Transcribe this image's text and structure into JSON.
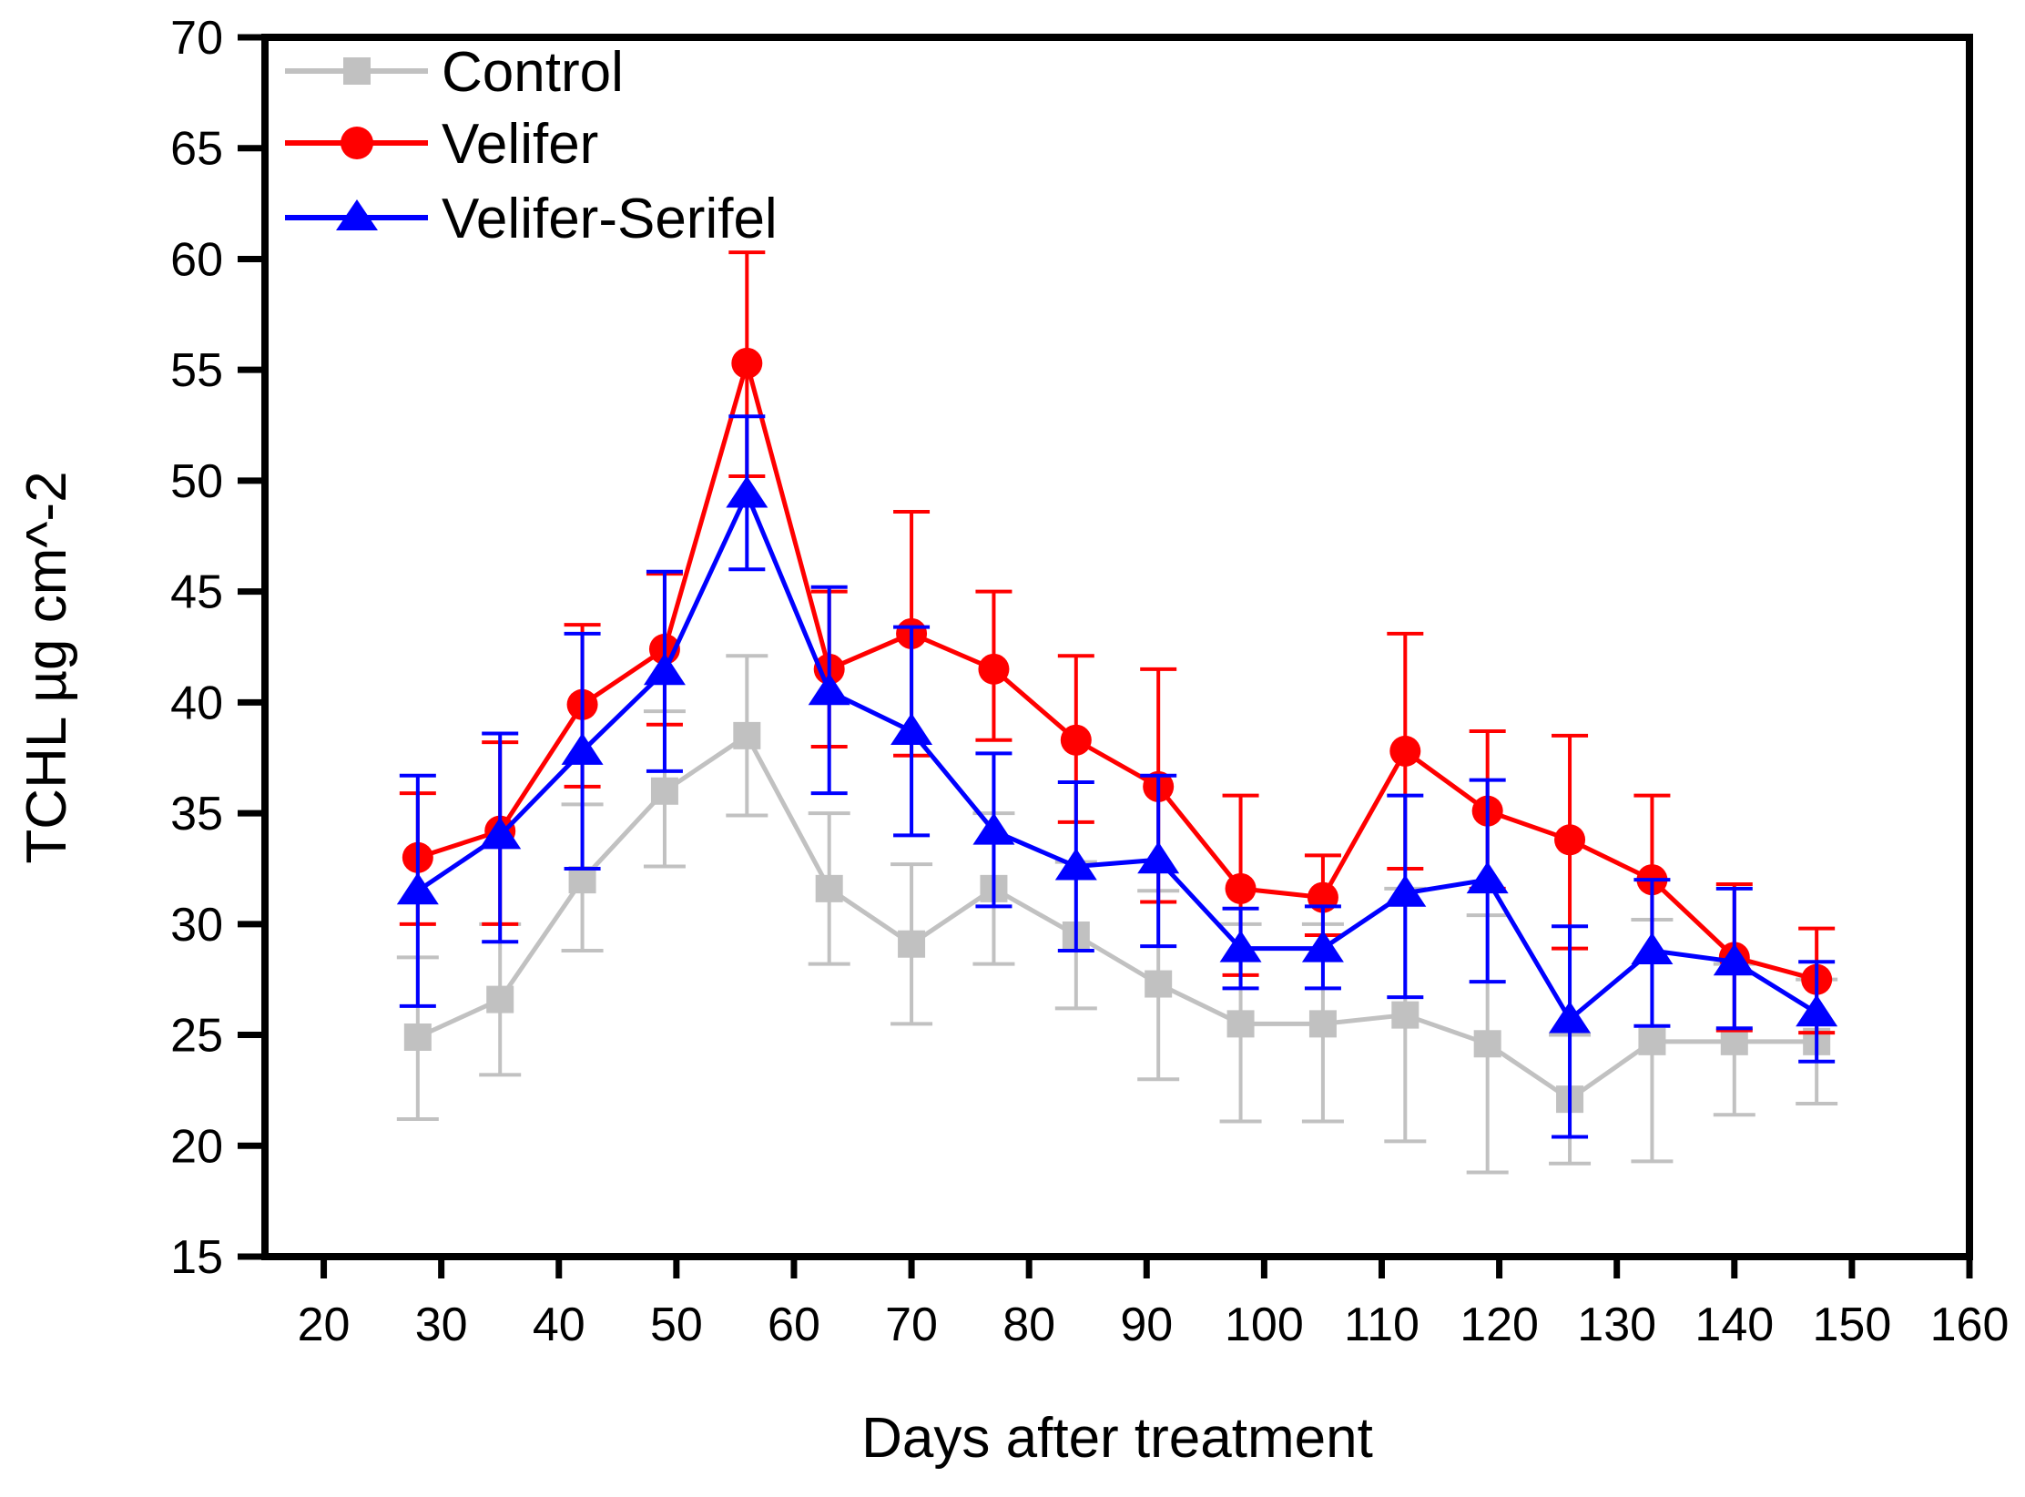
{
  "chart_data": {
    "type": "line",
    "title": "",
    "xlabel": "Days after treatment",
    "ylabel": "TCHL µg cm^-2",
    "xlim": [
      15,
      160
    ],
    "ylim": [
      15,
      70
    ],
    "x_ticks": [
      20,
      30,
      40,
      50,
      60,
      70,
      80,
      90,
      100,
      110,
      120,
      130,
      140,
      150,
      160
    ],
    "y_ticks": [
      15,
      20,
      25,
      30,
      35,
      40,
      45,
      50,
      55,
      60,
      65,
      70
    ],
    "grid": false,
    "legend_position": "top-left-inside",
    "error_bars": true,
    "x": [
      28,
      35,
      42,
      49,
      56,
      63,
      70,
      77,
      84,
      91,
      98,
      105,
      112,
      119,
      126,
      133,
      140,
      147
    ],
    "series": [
      {
        "name": "Control",
        "color": "#c1c1c1",
        "marker": "square",
        "values": [
          24.9,
          26.6,
          32.0,
          36.0,
          38.5,
          31.6,
          29.1,
          31.6,
          29.5,
          27.3,
          25.5,
          25.5,
          25.9,
          24.6,
          22.1,
          24.7,
          24.7,
          24.7
        ],
        "err_lower": [
          21.2,
          23.2,
          28.8,
          32.6,
          34.9,
          28.2,
          25.5,
          28.2,
          26.2,
          23.0,
          21.1,
          21.1,
          20.2,
          18.8,
          19.2,
          19.3,
          21.4,
          21.9
        ],
        "err_upper": [
          28.5,
          30.0,
          35.4,
          39.6,
          42.1,
          35.0,
          32.7,
          35.0,
          32.8,
          31.5,
          30.0,
          30.0,
          31.6,
          30.4,
          25.0,
          30.2,
          28.2,
          27.5
        ]
      },
      {
        "name": "Velifer",
        "color": "#ff0000",
        "marker": "circle",
        "values": [
          33.0,
          34.2,
          39.9,
          42.4,
          55.3,
          41.5,
          43.1,
          41.5,
          38.3,
          36.2,
          31.6,
          31.2,
          37.8,
          35.1,
          33.8,
          32.0,
          28.5,
          27.5
        ],
        "err_lower": [
          30.0,
          30.0,
          36.2,
          39.0,
          50.2,
          38.0,
          37.6,
          38.3,
          34.6,
          31.0,
          27.7,
          29.5,
          32.5,
          31.6,
          28.9,
          28.3,
          25.2,
          25.1
        ],
        "err_upper": [
          35.9,
          38.2,
          43.5,
          45.8,
          60.3,
          45.0,
          48.6,
          45.0,
          42.1,
          41.5,
          35.8,
          33.1,
          43.1,
          38.7,
          38.5,
          35.8,
          31.8,
          29.8
        ]
      },
      {
        "name": "Velifer-Serifel",
        "color": "#0000ff",
        "marker": "triangle",
        "values": [
          31.5,
          34.0,
          37.8,
          41.4,
          49.4,
          40.5,
          38.7,
          34.2,
          32.6,
          32.9,
          28.9,
          28.9,
          31.4,
          32.0,
          25.7,
          28.8,
          28.3,
          26.0
        ],
        "err_lower": [
          26.3,
          29.2,
          32.5,
          36.9,
          46.0,
          35.9,
          34.0,
          30.8,
          28.8,
          29.0,
          27.1,
          27.1,
          26.7,
          27.4,
          20.4,
          25.4,
          25.3,
          23.8
        ],
        "err_upper": [
          36.7,
          38.6,
          43.1,
          45.9,
          52.9,
          45.2,
          43.4,
          37.7,
          36.4,
          36.7,
          30.7,
          30.8,
          35.8,
          36.5,
          29.9,
          32.0,
          31.6,
          28.3
        ]
      }
    ]
  }
}
